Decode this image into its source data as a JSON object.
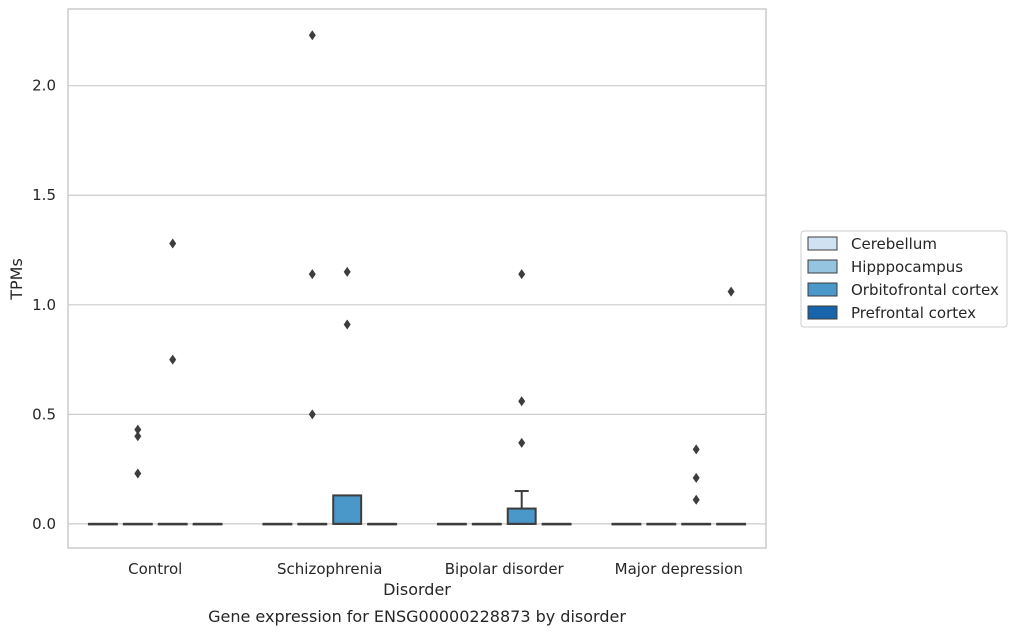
{
  "chart_data": {
    "type": "box",
    "title": "",
    "caption": "Gene expression for ENSG00000228873 by disorder",
    "xlabel": "Disorder",
    "ylabel": "TPMs",
    "ylim": [
      -0.11,
      2.35
    ],
    "yticks": [
      0.0,
      0.5,
      1.0,
      1.5,
      2.0
    ],
    "ytick_labels": [
      "0.0",
      "0.5",
      "1.0",
      "1.5",
      "2.0"
    ],
    "grid": "horizontal",
    "legend_position": "right",
    "categories": [
      "Control",
      "Schizophrenia",
      "Bipolar disorder",
      "Major depression"
    ],
    "series": [
      {
        "name": "Cerebellum",
        "color": "#d0e1f2",
        "boxes": [
          {
            "q1": 0,
            "median": 0,
            "q3": 0,
            "whisker_low": 0,
            "whisker_high": 0,
            "outliers": []
          },
          {
            "q1": 0,
            "median": 0,
            "q3": 0,
            "whisker_low": 0,
            "whisker_high": 0,
            "outliers": []
          },
          {
            "q1": 0,
            "median": 0,
            "q3": 0,
            "whisker_low": 0,
            "whisker_high": 0,
            "outliers": []
          },
          {
            "q1": 0,
            "median": 0,
            "q3": 0,
            "whisker_low": 0,
            "whisker_high": 0,
            "outliers": []
          }
        ]
      },
      {
        "name": "Hipppocampus",
        "color": "#94c4df",
        "boxes": [
          {
            "q1": 0,
            "median": 0,
            "q3": 0,
            "whisker_low": 0,
            "whisker_high": 0,
            "outliers": [
              0.23,
              0.4,
              0.43
            ]
          },
          {
            "q1": 0,
            "median": 0,
            "q3": 0,
            "whisker_low": 0,
            "whisker_high": 0,
            "outliers": [
              0.5,
              1.14,
              2.23
            ]
          },
          {
            "q1": 0,
            "median": 0,
            "q3": 0,
            "whisker_low": 0,
            "whisker_high": 0,
            "outliers": []
          },
          {
            "q1": 0,
            "median": 0,
            "q3": 0,
            "whisker_low": 0,
            "whisker_high": 0,
            "outliers": []
          }
        ]
      },
      {
        "name": "Orbitofrontal cortex",
        "color": "#4a98c9",
        "boxes": [
          {
            "q1": 0,
            "median": 0,
            "q3": 0,
            "whisker_low": 0,
            "whisker_high": 0,
            "outliers": [
              0.75,
              1.28
            ]
          },
          {
            "q1": 0,
            "median": 0,
            "q3": 0.13,
            "whisker_low": 0,
            "whisker_high": 0.13,
            "outliers": [
              0.91,
              1.15
            ]
          },
          {
            "q1": 0,
            "median": 0,
            "q3": 0.07,
            "whisker_low": 0,
            "whisker_high": 0.15,
            "outliers": [
              0.37,
              0.56,
              1.14
            ]
          },
          {
            "q1": 0,
            "median": 0,
            "q3": 0,
            "whisker_low": 0,
            "whisker_high": 0,
            "outliers": [
              0.11,
              0.21,
              0.34
            ]
          }
        ]
      },
      {
        "name": "Prefrontal cortex",
        "color": "#1764ab",
        "boxes": [
          {
            "q1": 0,
            "median": 0,
            "q3": 0,
            "whisker_low": 0,
            "whisker_high": 0,
            "outliers": []
          },
          {
            "q1": 0,
            "median": 0,
            "q3": 0,
            "whisker_low": 0,
            "whisker_high": 0,
            "outliers": []
          },
          {
            "q1": 0,
            "median": 0,
            "q3": 0,
            "whisker_low": 0,
            "whisker_high": 0,
            "outliers": []
          },
          {
            "q1": 0,
            "median": 0,
            "q3": 0,
            "whisker_low": 0,
            "whisker_high": 0,
            "outliers": [
              1.06
            ]
          }
        ]
      }
    ],
    "colors": {
      "grid": "#cccccc",
      "frame": "#cccccc",
      "box_edge": "#3d3d3d",
      "text": "#262626"
    }
  }
}
